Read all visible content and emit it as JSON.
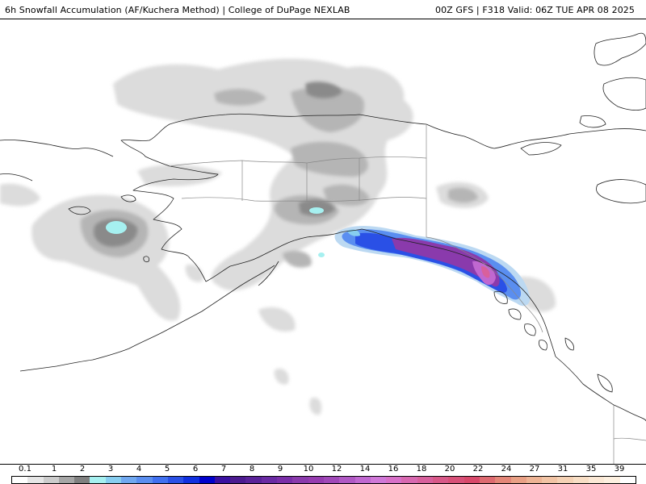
{
  "header": {
    "title": "6h Snowfall Accumulation (AF/Kuchera Method) | College of DuPage NEXLAB",
    "run_info": "00Z GFS | F318 Valid: 06Z TUE APR 08 2025"
  },
  "legend": {
    "labels": [
      "0.1",
      "1",
      "2",
      "3",
      "4",
      "5",
      "6",
      "7",
      "8",
      "9",
      "10",
      "12",
      "14",
      "16",
      "18",
      "20",
      "22",
      "24",
      "27",
      "31",
      "35",
      "39"
    ],
    "colors": [
      "#ffffff",
      "#e6e6e6",
      "#cccccc",
      "#a6a6a6",
      "#808080",
      "#a6f0f0",
      "#87cef0",
      "#70a8f0",
      "#5a8ef0",
      "#4070f0",
      "#2a50e6",
      "#1030e0",
      "#0000cc",
      "#3a10a0",
      "#4c1a90",
      "#5a2299",
      "#6a2aa3",
      "#7a2ea8",
      "#8a3aac",
      "#963cb0",
      "#a048b8",
      "#b058c4",
      "#c068d0",
      "#d078d8",
      "#d870c8",
      "#d868b0",
      "#d8609c",
      "#d85888",
      "#d85078",
      "#d8486a",
      "#de6a70",
      "#e48678",
      "#e9a085",
      "#eeb495",
      "#f2c4a5",
      "#f5d2b5",
      "#f8dec5",
      "#fbe8d5",
      "#fdf0e0",
      "#ffffff"
    ]
  }
}
